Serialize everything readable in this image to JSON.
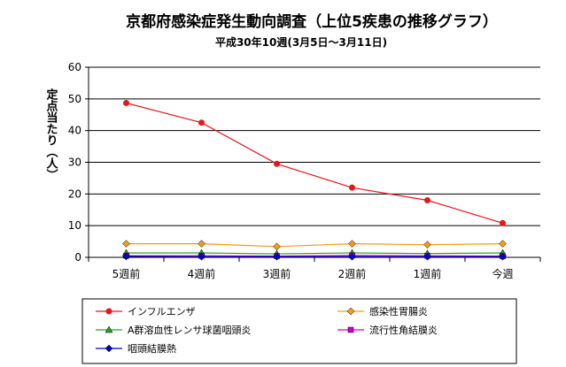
{
  "chart_data": {
    "type": "line",
    "title": "京都府感染症発生動向調査（上位5疾患の推移グラフ）",
    "subtitle": "平成30年10週(3月5日～3月11日)",
    "ylabel": "定点当たり（人）",
    "xlabel": "",
    "categories": [
      "5週前",
      "4週前",
      "3週前",
      "2週前",
      "1週前",
      "今週"
    ],
    "ylim": [
      0,
      60
    ],
    "yticks": [
      "0",
      "10",
      "20",
      "30",
      "40",
      "50",
      "60"
    ],
    "grid": true,
    "legend_position": "bottom",
    "series": [
      {
        "name": "インフルエンザ",
        "values": [
          48.7,
          42.5,
          29.5,
          22.0,
          18.0,
          10.8
        ],
        "color": "#e8161b",
        "marker": "circle"
      },
      {
        "name": "感染性胃腸炎",
        "values": [
          4.3,
          4.3,
          3.4,
          4.3,
          4.0,
          4.3
        ],
        "color": "#f39c12",
        "marker": "diamond"
      },
      {
        "name": "A群溶血性レンサ球菌咽頭炎",
        "values": [
          1.4,
          1.4,
          1.1,
          1.4,
          1.2,
          1.4
        ],
        "color": "#2ca02c",
        "marker": "triangle"
      },
      {
        "name": "流行性角結膜炎",
        "values": [
          0.5,
          0.5,
          0.4,
          0.6,
          0.5,
          0.4
        ],
        "color": "#cc00cc",
        "marker": "square"
      },
      {
        "name": "咽頭結膜熱",
        "values": [
          0.3,
          0.2,
          0.2,
          0.2,
          0.2,
          0.2
        ],
        "color": "#0000cc",
        "marker": "diamond"
      }
    ]
  }
}
